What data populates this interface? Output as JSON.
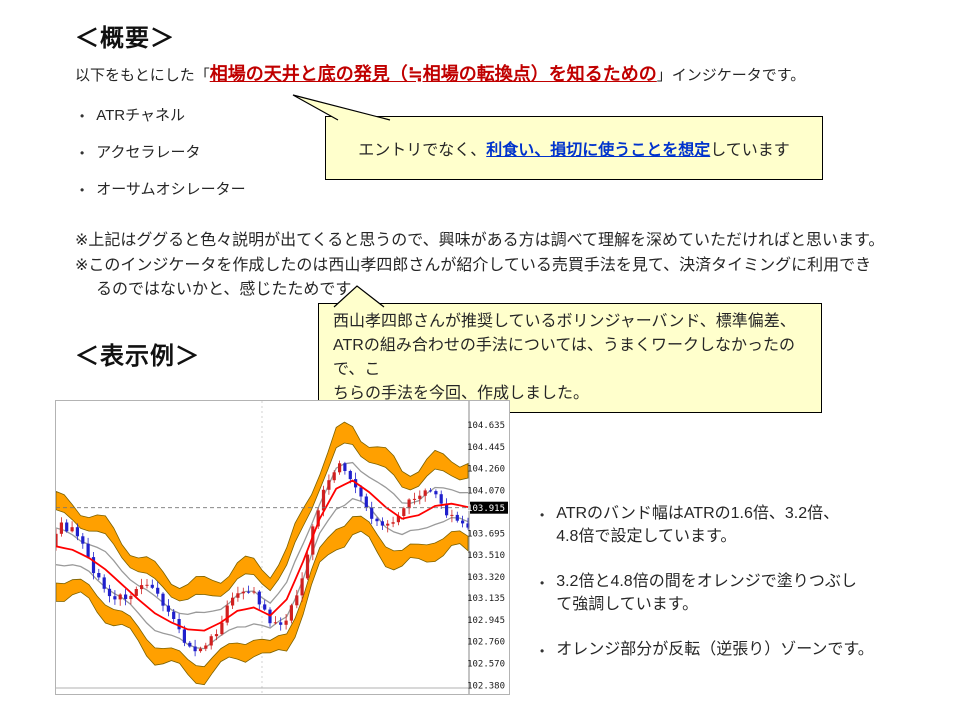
{
  "ui": {
    "bullet": "•"
  },
  "headings": {
    "overview": "＜概要＞",
    "example": "＜表示例＞"
  },
  "intro": {
    "prefix": "以下をもとにした「",
    "highlight": "相場の天井と底の発見（≒相場の転換点）を知るための",
    "suffix": "」インジケータです。"
  },
  "source_bullets": [
    "ATRチャネル",
    "アクセラレータ",
    "オーサムオシレーター"
  ],
  "callout_entry": {
    "prefix": "エントリでなく、",
    "highlight": "利食い、損切に使うことを想定",
    "suffix": "しています"
  },
  "notes": {
    "note1": "※上記はググると色々説明が出てくると思うので、興味がある方は調べて理解を深めていただければと思います。",
    "note2": "※このインジケータを作成したのは西山孝四郎さんが紹介している売買手法を見て、決済タイミングに利用でき\nるのではないかと、感じたためです。"
  },
  "callout_method": {
    "text": "西山孝四郎さんが推奨しているボリンジャーバンド、標準偏差、\nATRの組み合わせの手法については、うまくワークしなかったので、こ\nちらの手法を今回、作成しました。"
  },
  "example_bullets": [
    "ATRのバンド幅はATRの1.6倍、3.2倍、\n4.8倍で設定しています。",
    "3.2倍と4.8倍の間をオレンジで塗りつぶし\nて強調しています。",
    "オレンジ部分が反転（逆張り）ゾーンです。"
  ],
  "colors": {
    "highlight_red": "#c00000",
    "highlight_blue": "#0033cc",
    "callout_bg": "#ffffcc",
    "callout_border": "#000000",
    "text": "#262626"
  },
  "chart_data": {
    "type": "candlestick",
    "description": "MT4-style candlestick chart with ATR channel: red moving average, gray bands at 1.6x ATR, orange filled zones between 3.2x and 4.8x ATR",
    "y_axis_labels": [
      "104.635",
      "104.445",
      "104.260",
      "104.070",
      "103.915",
      "103.695",
      "103.510",
      "103.320",
      "103.135",
      "102.945",
      "102.760",
      "102.570",
      "102.380"
    ],
    "current_price": "103.915",
    "price_top": 104.84,
    "price_bottom": 102.3,
    "band_multipliers": [
      1.6,
      3.2,
      4.8
    ],
    "x_percent": [
      0,
      4,
      8,
      12,
      16,
      20,
      24,
      28,
      32,
      36,
      40,
      44,
      48,
      52,
      56,
      60,
      64,
      68,
      72,
      76,
      80,
      84,
      88,
      92,
      96,
      100
    ],
    "center_ma": [
      103.58,
      103.55,
      103.48,
      103.38,
      103.25,
      103.12,
      103.0,
      102.92,
      102.86,
      102.85,
      102.92,
      103.02,
      103.05,
      102.98,
      103.12,
      103.45,
      103.82,
      104.08,
      104.15,
      104.05,
      103.92,
      103.82,
      103.85,
      103.93,
      103.95,
      103.92
    ],
    "atr": [
      0.085,
      0.085,
      0.082,
      0.082,
      0.08,
      0.08,
      0.08,
      0.08,
      0.082,
      0.085,
      0.085,
      0.083,
      0.08,
      0.082,
      0.085,
      0.09,
      0.095,
      0.097,
      0.097,
      0.095,
      0.092,
      0.09,
      0.088,
      0.085,
      0.084,
      0.084
    ],
    "colors": {
      "band": "#ffa000",
      "band_edge": "#7a6000",
      "inner": "#9a9a9a",
      "ma": "#ff0000",
      "candle_up": "#d02020",
      "candle_down": "#2020cc"
    }
  }
}
